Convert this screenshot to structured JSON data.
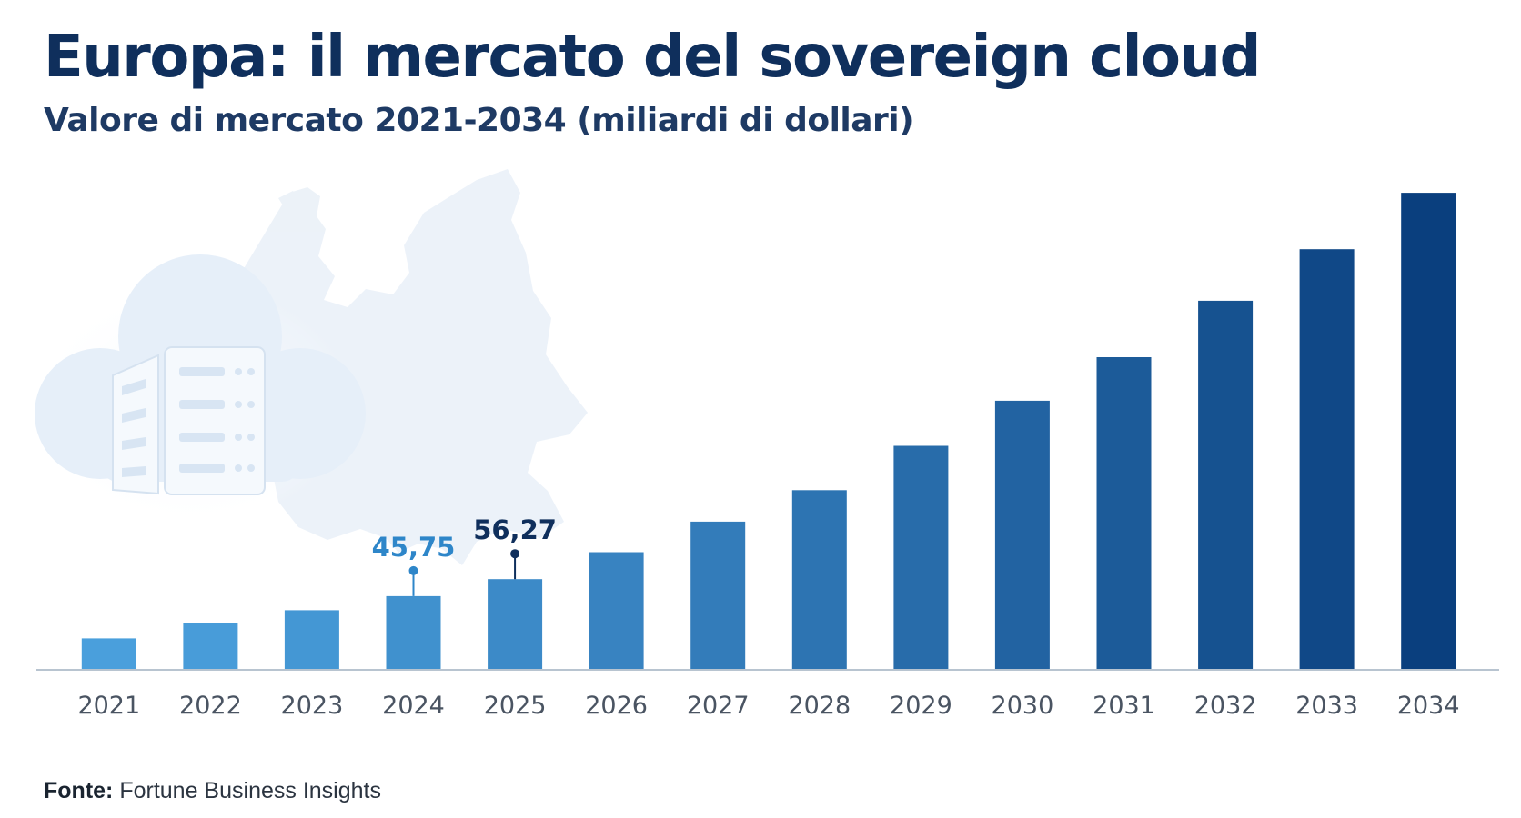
{
  "title": "Europa: il mercato del sovereign cloud",
  "subtitle": "Valore di mercato 2021-2034 (miliardi di dollari)",
  "source": {
    "label": "Fonte:",
    "text": "Fortune Business Insights"
  },
  "decoration": {
    "background_icons": [
      "cloud-server-icon",
      "europe-map-icon"
    ]
  },
  "colors": {
    "title": "#0f2f5c",
    "bar_light": "#4a9fdc",
    "bar_dark": "#0a3f7e",
    "annotation_2024": "#2e86c9",
    "annotation_2025": "#0f2f5c",
    "axis": "#b8c4d0",
    "tick_label": "#4a5462"
  },
  "chart_data": {
    "type": "bar",
    "categories": [
      "2021",
      "2022",
      "2023",
      "2024",
      "2025",
      "2026",
      "2027",
      "2028",
      "2029",
      "2030",
      "2031",
      "2032",
      "2033",
      "2034"
    ],
    "values": [
      19.5,
      29.0,
      37.0,
      45.75,
      56.27,
      73.0,
      92.0,
      111.5,
      139.0,
      167.0,
      194.0,
      229.0,
      261.0,
      296.0
    ],
    "ylim": [
      0,
      300
    ],
    "grid": false,
    "legend": "none",
    "annotations": [
      {
        "category": "2024",
        "label": "45,75"
      },
      {
        "category": "2025",
        "label": "56,27"
      }
    ]
  }
}
